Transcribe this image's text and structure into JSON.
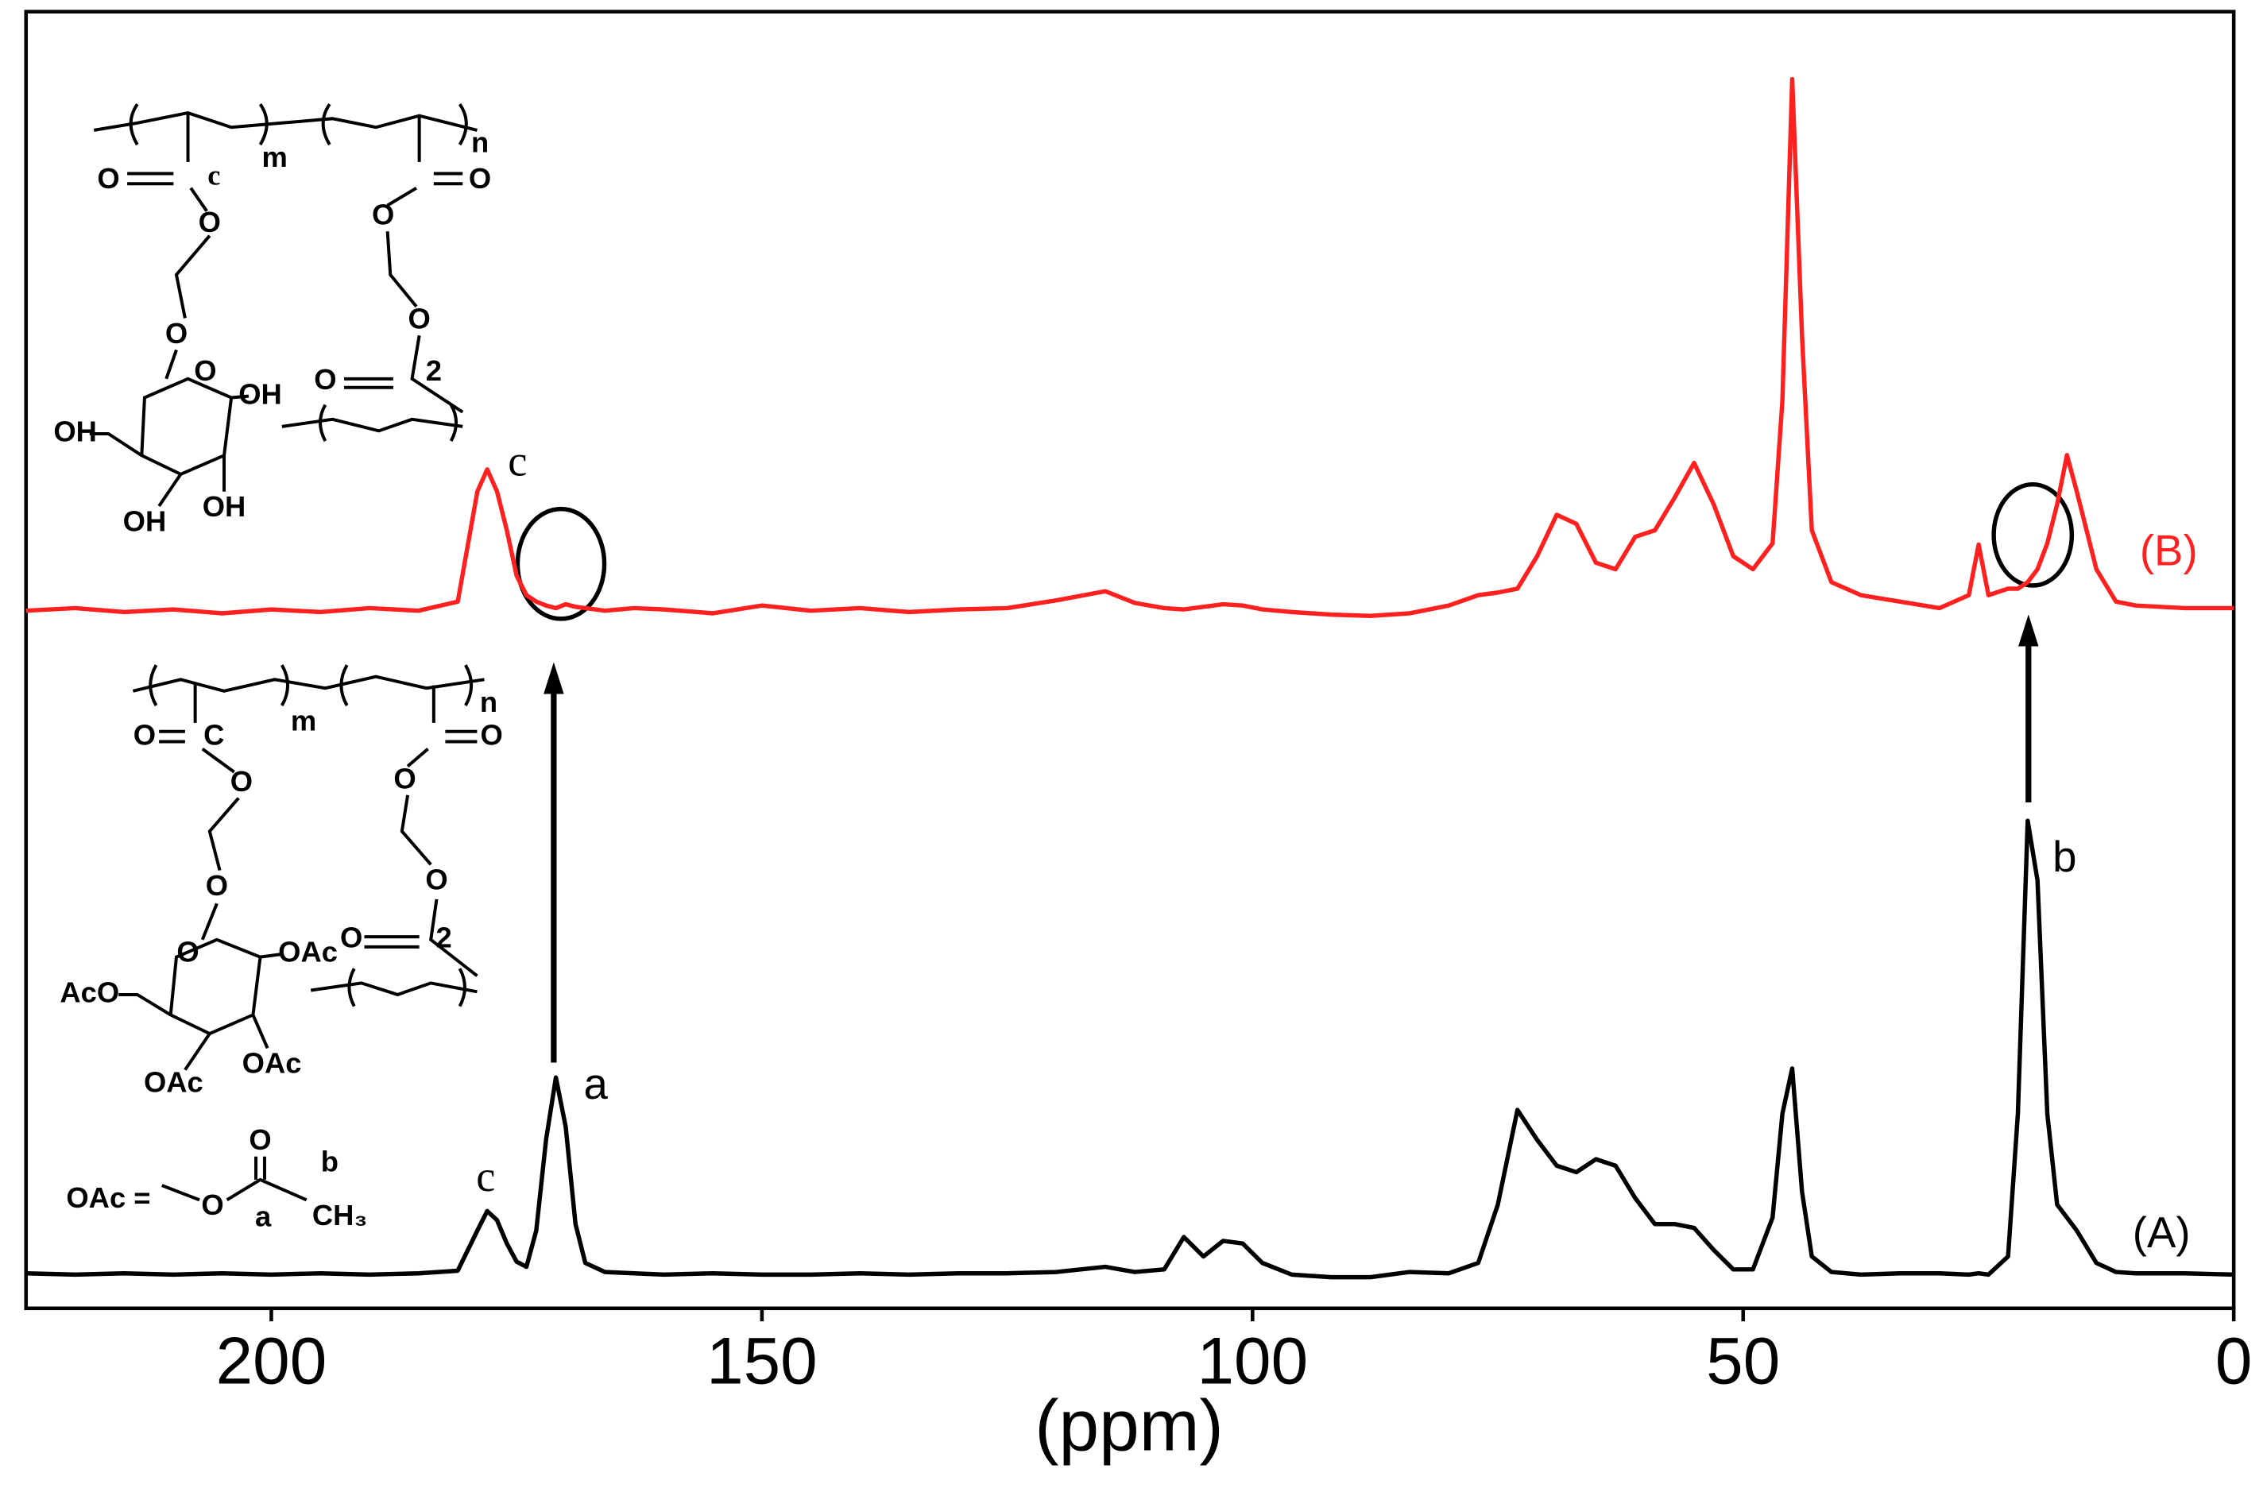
{
  "chart_data": {
    "type": "line",
    "xlabel": "(ppm)",
    "xlim": [
      225,
      0
    ],
    "xticks": [
      200,
      150,
      100,
      50,
      0
    ],
    "ylim": [
      0,
      100
    ],
    "x": [
      225,
      220,
      215,
      210,
      205,
      200,
      195,
      190,
      185,
      181,
      179,
      178,
      177,
      176,
      175,
      174,
      173,
      172,
      171,
      170,
      169,
      168,
      166,
      163,
      160,
      155,
      150,
      145,
      140,
      135,
      130,
      125,
      120,
      115,
      112,
      109,
      107,
      105,
      103,
      101,
      99,
      96,
      92,
      88,
      84,
      80,
      77,
      75,
      73,
      71,
      69,
      67,
      65,
      63,
      61,
      59,
      57,
      55,
      53,
      51,
      49,
      47,
      46,
      45,
      44,
      43,
      41,
      38,
      34,
      30,
      27,
      26,
      25,
      23,
      22,
      21,
      20,
      19,
      18,
      17,
      16,
      14,
      12,
      10,
      5,
      0
    ],
    "series": [
      {
        "name": "(A)",
        "color": "#000000",
        "values": [
          2.7,
          2.6,
          2.7,
          2.6,
          2.7,
          2.6,
          2.7,
          2.6,
          2.7,
          2.9,
          6.0,
          7.5,
          6.8,
          5.0,
          3.6,
          3.2,
          6.0,
          13.0,
          17.8,
          14.0,
          6.5,
          3.5,
          2.8,
          2.7,
          2.6,
          2.7,
          2.6,
          2.6,
          2.7,
          2.6,
          2.7,
          2.7,
          2.8,
          3.2,
          2.8,
          3.0,
          5.5,
          4.0,
          5.2,
          5.0,
          3.5,
          2.6,
          2.4,
          2.4,
          2.8,
          2.7,
          3.5,
          8.0,
          15.3,
          13.0,
          11.0,
          10.5,
          11.5,
          11.0,
          8.5,
          6.5,
          6.5,
          6.2,
          4.5,
          3.0,
          3.0,
          7.0,
          15.0,
          18.5,
          9.0,
          4.0,
          2.8,
          2.6,
          2.7,
          2.7,
          2.6,
          2.7,
          2.6,
          4.0,
          15.0,
          37.6,
          33.0,
          15.0,
          8.0,
          7.0,
          6.0,
          3.5,
          2.8,
          2.7,
          2.7,
          2.6
        ]
      },
      {
        "name": "(B)",
        "color": "#ff2020",
        "values": [
          53.8,
          54.0,
          53.7,
          53.9,
          53.6,
          53.9,
          53.7,
          54.0,
          53.8,
          54.5,
          63.0,
          64.7,
          63.0,
          60.0,
          56.5,
          55.0,
          54.5,
          54.2,
          54.0,
          54.3,
          54.1,
          54.0,
          53.8,
          54.0,
          53.9,
          53.6,
          54.2,
          53.8,
          54.0,
          53.7,
          53.9,
          54.0,
          54.6,
          55.3,
          54.4,
          54.0,
          53.9,
          54.1,
          54.3,
          54.2,
          53.9,
          53.7,
          53.5,
          53.4,
          53.6,
          54.2,
          55.0,
          55.2,
          55.5,
          58.0,
          61.2,
          60.5,
          57.5,
          57.0,
          59.5,
          60.0,
          62.5,
          65.2,
          62.0,
          58.0,
          57.0,
          59.0,
          70.0,
          94.8,
          75.0,
          60.0,
          56.0,
          55.0,
          54.5,
          54.0,
          55.0,
          58.9,
          55.0,
          55.5,
          55.5,
          56.0,
          57.0,
          59.0,
          62.0,
          65.8,
          63.0,
          57.0,
          54.5,
          54.2,
          54.0,
          54.0
        ]
      }
    ],
    "annotations": [
      "c",
      "a",
      "b",
      "c"
    ],
    "structures": [
      {
        "labels": [
          "O",
          "c",
          "m",
          "n",
          "O",
          "O",
          "O",
          "O",
          "O",
          "O",
          "2",
          "OH",
          "OH",
          "OH",
          "OH",
          "O"
        ]
      },
      {
        "labels": [
          "O",
          "C",
          "m",
          "n",
          "O",
          "O",
          "O",
          "O",
          "O",
          "O",
          "OAc",
          "O",
          "2",
          "AcO",
          "OAc",
          "OAc",
          "OAc =",
          "O",
          "O",
          "a",
          "b",
          "CH₃"
        ]
      }
    ]
  }
}
